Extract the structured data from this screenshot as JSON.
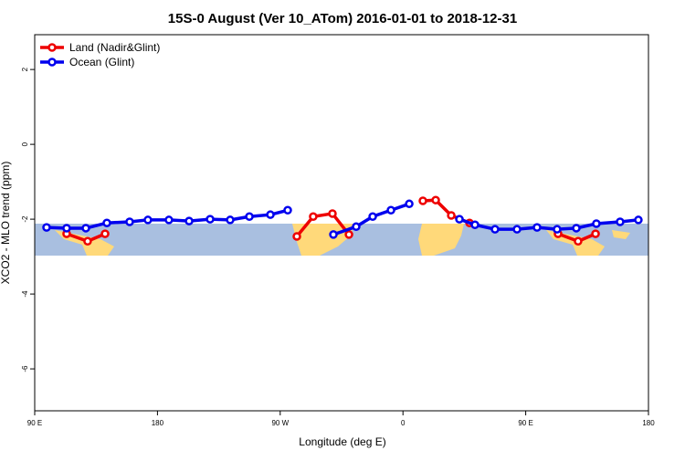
{
  "chart_data": {
    "type": "line",
    "title": "15S-0 August (Ver 10_ATom)   2016-01-01 to 2018-12-31",
    "xlabel": "Longitude (deg E)",
    "ylabel": "XCO2 - MLO trend (ppm)",
    "xlim": [
      90,
      540
    ],
    "xticks": [
      {
        "value": 90,
        "label": "90 E"
      },
      {
        "value": 180,
        "label": "180"
      },
      {
        "value": 270,
        "label": "90 W"
      },
      {
        "value": 360,
        "label": "0"
      },
      {
        "value": 450,
        "label": "90 E"
      },
      {
        "value": 540,
        "label": "180"
      }
    ],
    "ylim": [
      -7.12,
      2.93
    ],
    "yticks": [
      2,
      0,
      -2,
      -4,
      -6
    ],
    "legend": "top-left",
    "series": [
      {
        "name": "Land (Nadir&Glint)",
        "color": "#ee0000",
        "x": [
          113.4,
          128.8,
          141.6,
          null,
          282.2,
          294.2,
          308.3,
          320.4,
          null,
          374.6,
          384.0,
          395.4,
          408.8,
          null,
          473.7,
          488.4,
          501.2
        ],
        "values": [
          -2.39,
          -2.59,
          -2.39,
          null,
          -2.46,
          -1.93,
          -1.85,
          -2.41,
          null,
          -1.51,
          -1.49,
          -1.9,
          -2.1,
          null,
          -2.39,
          -2.59,
          -2.39
        ]
      },
      {
        "name": "Ocean (Glint)",
        "color": "#0000ee",
        "x": [
          98.7,
          113.4,
          127.5,
          142.9,
          159.6,
          173.0,
          188.4,
          203.2,
          218.6,
          233.3,
          247.4,
          262.8,
          275.5,
          null,
          309.0,
          325.7,
          337.8,
          351.2,
          364.6,
          null,
          401.4,
          412.8,
          427.5,
          443.6,
          458.3,
          473.0,
          487.1,
          501.8,
          519.2,
          532.6
        ],
        "values": [
          -2.22,
          -2.24,
          -2.24,
          -2.1,
          -2.07,
          -2.02,
          -2.02,
          -2.05,
          -2.0,
          -2.02,
          -1.93,
          -1.88,
          -1.76,
          null,
          -2.41,
          -2.2,
          -1.93,
          -1.76,
          -1.59,
          null,
          -2.0,
          -2.15,
          -2.27,
          -2.27,
          -2.22,
          -2.27,
          -2.24,
          -2.12,
          -2.07,
          -2.02
        ]
      }
    ]
  }
}
